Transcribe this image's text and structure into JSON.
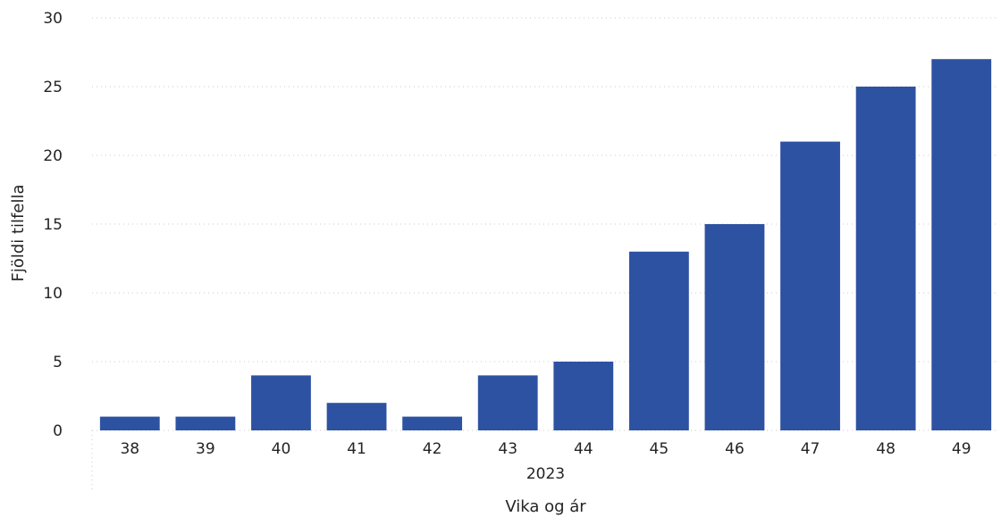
{
  "chart_data": {
    "type": "bar",
    "categories": [
      "38",
      "39",
      "40",
      "41",
      "42",
      "43",
      "44",
      "45",
      "46",
      "47",
      "48",
      "49"
    ],
    "category_group": "2023",
    "values": [
      1,
      1,
      4,
      2,
      1,
      4,
      5,
      13,
      15,
      21,
      25,
      27
    ],
    "yticks": [
      "0",
      "5",
      "10",
      "15",
      "20",
      "25",
      "30"
    ],
    "xlabel": "Vika og ár",
    "ylabel": "Fjöldi tilfella",
    "ylim": [
      0,
      30
    ],
    "grid": true,
    "bar_color": "#2e52a2",
    "grid_color": "#c8c8c8"
  }
}
